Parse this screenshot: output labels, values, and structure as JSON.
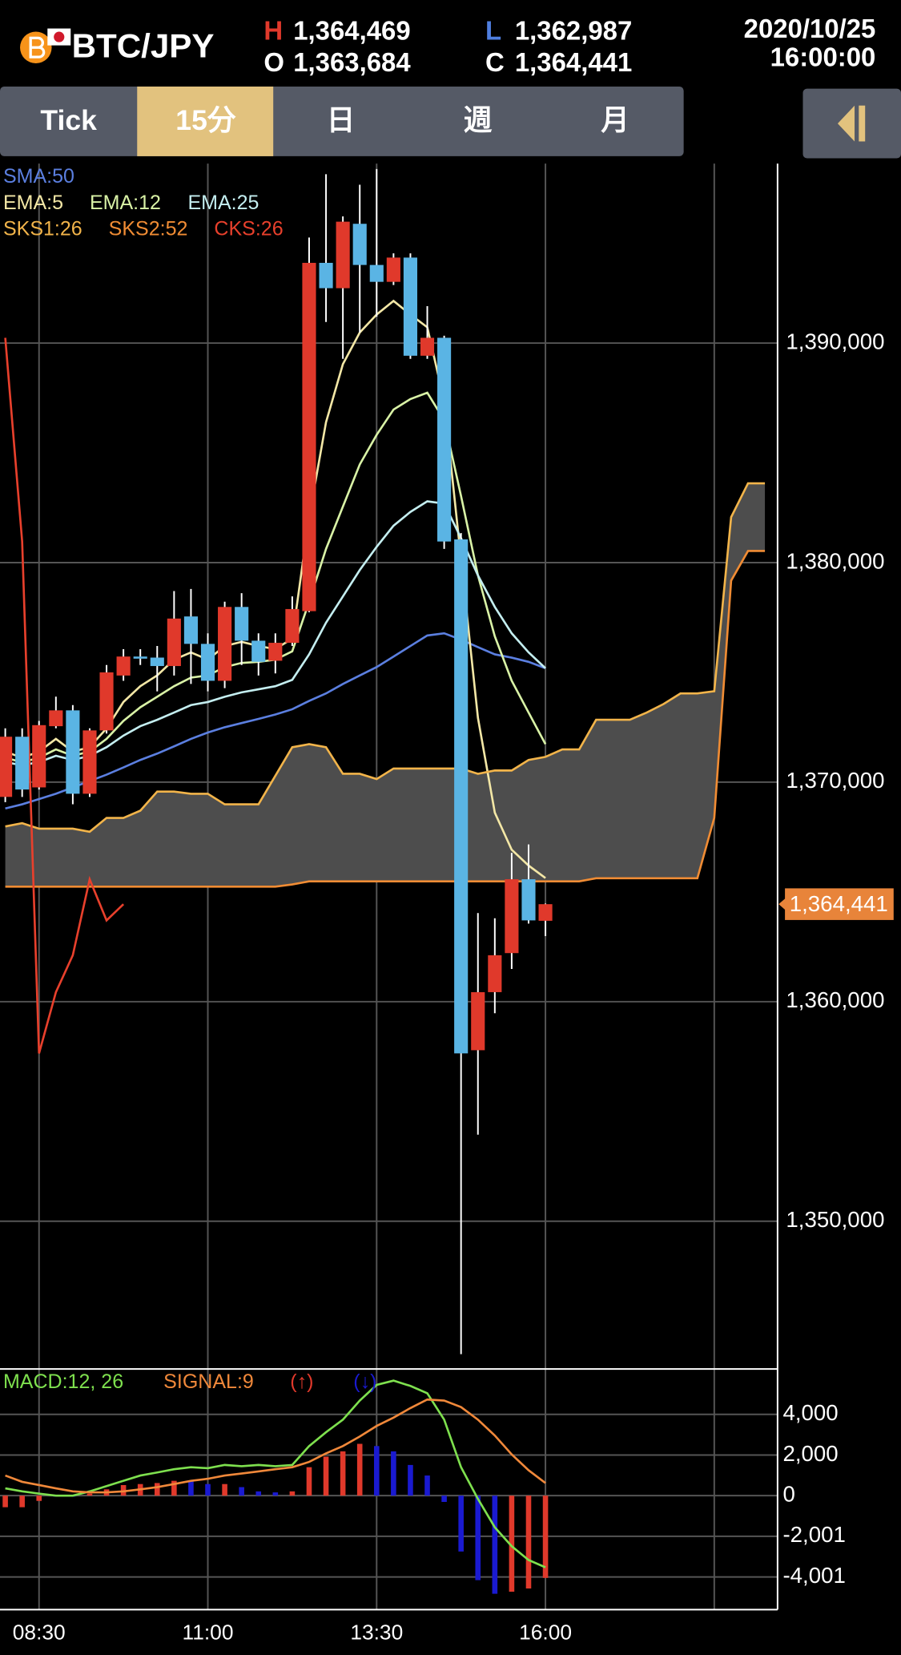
{
  "header": {
    "symbol": "BTC/JPY",
    "high": {
      "key": "H",
      "value": "1,364,469"
    },
    "open": {
      "key": "O",
      "value": "1,363,684"
    },
    "low": {
      "key": "L",
      "value": "1,362,987"
    },
    "close": {
      "key": "C",
      "value": "1,364,441"
    },
    "date": "2020/10/25",
    "time": "16:00:00"
  },
  "tabs": [
    "Tick",
    "15分",
    "日",
    "週",
    "月"
  ],
  "chart_data": [
    {
      "type": "candlestick",
      "categories": [
        null,
        null,
        "08:30",
        null,
        null,
        null,
        null,
        null,
        null,
        null,
        null,
        null,
        "11:00",
        null,
        null,
        null,
        null,
        null,
        null,
        null,
        null,
        null,
        "13:30",
        null,
        null,
        null,
        null,
        null,
        null,
        null,
        null,
        null,
        "16:00",
        null,
        null,
        null,
        null,
        null,
        null,
        null,
        null,
        null,
        null,
        null,
        null,
        null
      ],
      "ylim": [
        1343365,
        1398175
      ],
      "yticks": [
        {
          "value": 1390000,
          "label": "1,390,000"
        },
        {
          "value": 1380000,
          "label": "1,380,000"
        },
        {
          "value": 1370000,
          "label": "1,370,000"
        },
        {
          "value": 1360000,
          "label": "1,360,000"
        },
        {
          "value": 1350000,
          "label": "1,350,000"
        }
      ],
      "grid": true,
      "up_color": "#e0392b",
      "down_color": "#5ab4e4",
      "open": [
        1369327,
        1372068,
        1369760,
        1372548,
        1373269,
        1369471,
        1372356,
        1374856,
        1375721,
        1375673,
        1375288,
        1377547,
        1376298,
        1374616,
        1377980,
        1376442,
        1375529,
        1376346,
        1377788,
        1393654,
        1392500,
        1395433,
        1393558,
        1392789,
        1393894,
        1389423,
        1390240,
        1381057,
        1357788,
        1360433,
        1362212,
        1365576,
        1363684,
        null,
        null,
        null,
        null,
        null,
        null,
        null,
        null,
        null,
        null,
        null,
        null,
        null
      ],
      "high": [
        1372452,
        1372452,
        1372788,
        1373894,
        1373509,
        1372452,
        1375336,
        1376057,
        1376057,
        1376202,
        1378702,
        1378798,
        1376778,
        1378221,
        1378606,
        1376778,
        1376778,
        1378461,
        1394808,
        1397693,
        1395770,
        1397212,
        1397930,
        1394087,
        1394087,
        1391683,
        1390337,
        1381346,
        1364038,
        1363798,
        1366778,
        1367163,
        1364469,
        null,
        null,
        null,
        null,
        null,
        null,
        null,
        null,
        null,
        null,
        null,
        null,
        null
      ],
      "low": [
        1369087,
        1369327,
        1369664,
        1372452,
        1368990,
        1369327,
        1372212,
        1374616,
        1375336,
        1374134,
        1374856,
        1374471,
        1374134,
        1374279,
        1375336,
        1374856,
        1374952,
        1376202,
        1377740,
        1390962,
        1389279,
        1390481,
        1391202,
        1392644,
        1389279,
        1389279,
        1380625,
        1343942,
        1353942,
        1359471,
        1361490,
        1363558,
        1362987,
        null,
        null,
        null,
        null,
        null,
        null,
        null,
        null,
        null,
        null,
        null,
        null,
        null
      ],
      "close": [
        1372068,
        1369664,
        1372596,
        1373269,
        1369471,
        1372356,
        1375000,
        1375721,
        1375625,
        1375288,
        1377451,
        1376298,
        1374616,
        1377980,
        1376442,
        1375481,
        1376346,
        1377884,
        1393654,
        1392500,
        1395529,
        1393558,
        1392789,
        1393894,
        1389423,
        1390240,
        1380961,
        1357644,
        1360433,
        1362115,
        1365576,
        1363702,
        1364441,
        null,
        null,
        null,
        null,
        null,
        null,
        null,
        null,
        null,
        null,
        null,
        null,
        null
      ],
      "series": [
        {
          "name": "SMA:50",
          "color": "#5b7fe0",
          "values": [
            1368800,
            1368990,
            1369230,
            1369470,
            1369760,
            1370050,
            1370340,
            1370670,
            1371010,
            1371300,
            1371630,
            1371970,
            1372260,
            1372500,
            1372690,
            1372880,
            1373080,
            1373320,
            1373700,
            1374040,
            1374470,
            1374860,
            1375240,
            1375720,
            1376200,
            1376680,
            1376780,
            1376490,
            1376150,
            1375820,
            1375670,
            1375480,
            1375190,
            null,
            null,
            null,
            null,
            null,
            null,
            null,
            null,
            null,
            null,
            null,
            null,
            null
          ]
        },
        {
          "name": "EMA:5",
          "color": "#f3e7a6",
          "values": [
            1371390,
            1371110,
            1371390,
            1371970,
            1371390,
            1371590,
            1372450,
            1373650,
            1374370,
            1374860,
            1375580,
            1375910,
            1375580,
            1376200,
            1376390,
            1376200,
            1376060,
            1376540,
            1382070,
            1386390,
            1389040,
            1390480,
            1391300,
            1391920,
            1391300,
            1390720,
            1387360,
            1380140,
            1372930,
            1368610,
            1366920,
            1366200,
            1365630,
            null,
            null,
            null,
            null,
            null,
            null,
            null,
            null,
            null,
            null,
            null,
            null,
            null
          ]
        },
        {
          "name": "EMA:12",
          "color": "#d9f2a6",
          "values": [
            1371110,
            1370910,
            1371110,
            1371490,
            1371200,
            1371390,
            1371970,
            1372790,
            1373410,
            1373890,
            1374370,
            1374760,
            1374860,
            1375240,
            1375430,
            1375480,
            1375580,
            1375960,
            1378220,
            1380620,
            1382550,
            1384470,
            1385820,
            1386970,
            1387450,
            1387740,
            1386490,
            1383030,
            1379420,
            1376640,
            1374620,
            1373170,
            1371730,
            null,
            null,
            null,
            null,
            null,
            null,
            null,
            null,
            null,
            null,
            null,
            null,
            null
          ]
        },
        {
          "name": "EMA:25",
          "color": "#c4eef0",
          "values": [
            1370910,
            1370770,
            1370910,
            1371200,
            1371010,
            1371200,
            1371590,
            1372120,
            1372550,
            1372840,
            1373170,
            1373510,
            1373650,
            1373890,
            1374090,
            1374230,
            1374370,
            1374660,
            1375820,
            1377260,
            1378460,
            1379660,
            1380720,
            1381680,
            1382310,
            1382790,
            1382690,
            1381110,
            1379420,
            1377980,
            1376780,
            1375910,
            1375190,
            null,
            null,
            null,
            null,
            null,
            null,
            null,
            null,
            null,
            null,
            null,
            null,
            null
          ]
        },
        {
          "name": "SKS1:26",
          "color": "#f2b44a",
          "values": [
            1367980,
            1368130,
            1367880,
            1367880,
            1367880,
            1367740,
            1368370,
            1368370,
            1368700,
            1369570,
            1369570,
            1369470,
            1369470,
            1368990,
            1368990,
            1368990,
            1370290,
            1371590,
            1371730,
            1371590,
            1370380,
            1370380,
            1370140,
            1370620,
            1370620,
            1370620,
            1370620,
            1370620,
            1370380,
            1370530,
            1370530,
            1371010,
            1371150,
            1371490,
            1371490,
            1372840,
            1372840,
            1372840,
            1373170,
            1373560,
            1374040,
            1374040,
            1374140,
            1382070,
            1383610,
            1383610
          ]
        },
        {
          "name": "SKS2:52",
          "color": "#f08c34",
          "values": [
            1365240,
            1365240,
            1365240,
            1365240,
            1365240,
            1365240,
            1365240,
            1365240,
            1365240,
            1365240,
            1365240,
            1365240,
            1365240,
            1365240,
            1365240,
            1365240,
            1365240,
            1365340,
            1365480,
            1365480,
            1365480,
            1365480,
            1365480,
            1365480,
            1365480,
            1365480,
            1365480,
            1365480,
            1365480,
            1365480,
            1365480,
            1365480,
            1365480,
            1365480,
            1365480,
            1365620,
            1365620,
            1365620,
            1365620,
            1365620,
            1365620,
            1365620,
            1368370,
            1379180,
            1380530,
            1380530
          ]
        },
        {
          "name": "CKS:26",
          "color": "#e8402c",
          "values": [
            1390240,
            1380961,
            1357644,
            1360433,
            1362115,
            1365576,
            1363702,
            1364441,
            null,
            null,
            null,
            null,
            null,
            null,
            null,
            null,
            null,
            null,
            null,
            null,
            null,
            null,
            null,
            null,
            null,
            null,
            null,
            null,
            null,
            null,
            null,
            null,
            null,
            null,
            null,
            null,
            null,
            null,
            null,
            null,
            null,
            null,
            null,
            null,
            null,
            null
          ]
        }
      ],
      "cloud_color": "#4d4d4d",
      "last_price": {
        "value": 1364441,
        "label": "1,364,441",
        "color": "#e8843a"
      }
    },
    {
      "type": "macd",
      "ylim": [
        -5610,
        6235
      ],
      "yticks": [
        {
          "value": 4000,
          "label": "4,000"
        },
        {
          "value": 2000,
          "label": "2,000"
        },
        0,
        {
          "value": -2001,
          "label": "-2,001"
        },
        {
          "value": -4001,
          "label": "-4,001"
        }
      ],
      "grid": true,
      "series": [
        {
          "name": "MACD:12, 26",
          "color": "#7ee04e",
          "values": [
            360,
            210,
            100,
            0,
            0,
            210,
            470,
            730,
            990,
            1140,
            1300,
            1400,
            1350,
            1510,
            1450,
            1510,
            1450,
            1510,
            2440,
            3120,
            3740,
            4680,
            5450,
            5660,
            5400,
            5040,
            3740,
            1400,
            -160,
            -1560,
            -2490,
            -3170,
            -3530,
            null,
            null,
            null,
            null,
            null,
            null,
            null,
            null,
            null,
            null,
            null,
            null,
            null
          ]
        },
        {
          "name": "SIGNAL:9",
          "color": "#f0883a",
          "values": [
            990,
            680,
            520,
            360,
            210,
            160,
            160,
            210,
            310,
            420,
            570,
            730,
            830,
            990,
            1090,
            1190,
            1300,
            1400,
            1660,
            2080,
            2440,
            2910,
            3430,
            3840,
            4310,
            4730,
            4680,
            4360,
            3740,
            2960,
            2030,
            1250,
            620,
            null,
            null,
            null,
            null,
            null,
            null,
            null,
            null,
            null,
            null,
            null,
            null,
            null
          ]
        }
      ],
      "histogram": {
        "values": [
          -570,
          -570,
          -260,
          -50,
          -50,
          100,
          310,
          520,
          570,
          620,
          730,
          730,
          570,
          570,
          420,
          210,
          160,
          210,
          1400,
          1920,
          2180,
          2550,
          2440,
          2180,
          1510,
          990,
          -310,
          -2750,
          -4160,
          -4830,
          -4730,
          -4570,
          -4050,
          null,
          null,
          null,
          null,
          null,
          null,
          null,
          null,
          null,
          null,
          null,
          null,
          null
        ],
        "colors": [
          "#e0392b",
          "#e0392b",
          "#e0392b",
          "#1a1ad0",
          "#1a1ad0",
          "#e0392b",
          "#e0392b",
          "#e0392b",
          "#e0392b",
          "#e0392b",
          "#e0392b",
          "#1a1ad0",
          "#1a1ad0",
          "#e0392b",
          "#1a1ad0",
          "#1a1ad0",
          "#1a1ad0",
          "#e0392b",
          "#e0392b",
          "#e0392b",
          "#e0392b",
          "#e0392b",
          "#1a1ad0",
          "#1a1ad0",
          "#1a1ad0",
          "#1a1ad0",
          "#1a1ad0",
          "#1a1ad0",
          "#1a1ad0",
          "#1a1ad0",
          "#e0392b",
          "#e0392b",
          "#e0392b",
          null,
          null,
          null,
          null,
          null,
          null,
          null,
          null,
          null,
          null,
          null,
          null,
          null
        ],
        "legend": [
          {
            "label": "(↑)",
            "color": "#e0392b"
          },
          {
            "label": "(↓)",
            "color": "#1a1ad0"
          }
        ]
      }
    }
  ]
}
